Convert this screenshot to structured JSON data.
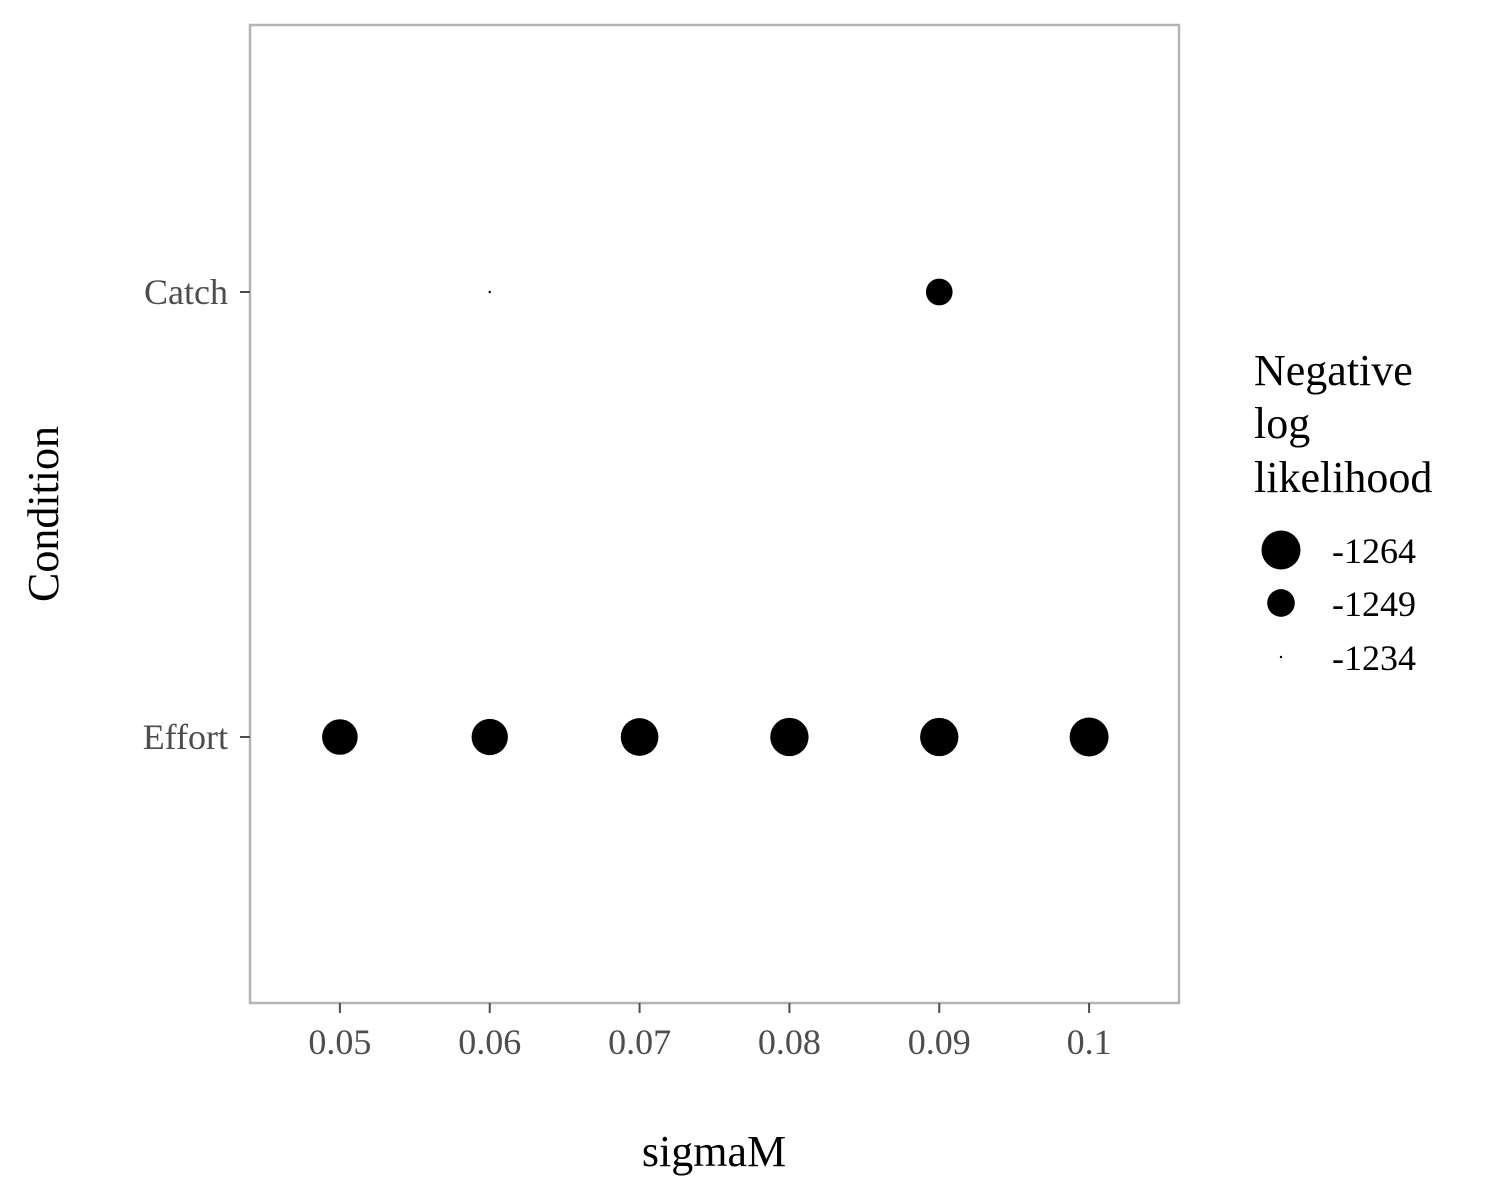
{
  "chart_data": {
    "type": "scatter",
    "xlabel": "sigmaM",
    "ylabel": "Condition",
    "x_ticks": [
      "0.05",
      "0.06",
      "0.07",
      "0.08",
      "0.09",
      "0.1"
    ],
    "x_tick_values": [
      0.05,
      0.06,
      0.07,
      0.08,
      0.09,
      0.1
    ],
    "xlim": [
      0.044,
      0.106
    ],
    "y_categories": [
      "Catch",
      "Effort"
    ],
    "size_legend": {
      "title_lines": [
        "Negative",
        "log",
        "likelihood"
      ],
      "entries": [
        {
          "label": "-1264",
          "value": -1264
        },
        {
          "label": "-1249",
          "value": -1249
        },
        {
          "label": "-1234",
          "value": -1234
        }
      ]
    },
    "points": [
      {
        "condition": "Catch",
        "x": 0.06,
        "value": -1234
      },
      {
        "condition": "Catch",
        "x": 0.09,
        "value": -1248
      },
      {
        "condition": "Effort",
        "x": 0.05,
        "value": -1259
      },
      {
        "condition": "Effort",
        "x": 0.06,
        "value": -1260
      },
      {
        "condition": "Effort",
        "x": 0.07,
        "value": -1262
      },
      {
        "condition": "Effort",
        "x": 0.08,
        "value": -1263
      },
      {
        "condition": "Effort",
        "x": 0.09,
        "value": -1263
      },
      {
        "condition": "Effort",
        "x": 0.1,
        "value": -1264
      }
    ],
    "grid": false,
    "legend_position": "right",
    "colors": {
      "point": "#000000",
      "panel_border": "#b3b3b3",
      "tick": "#4d4d4d"
    }
  }
}
